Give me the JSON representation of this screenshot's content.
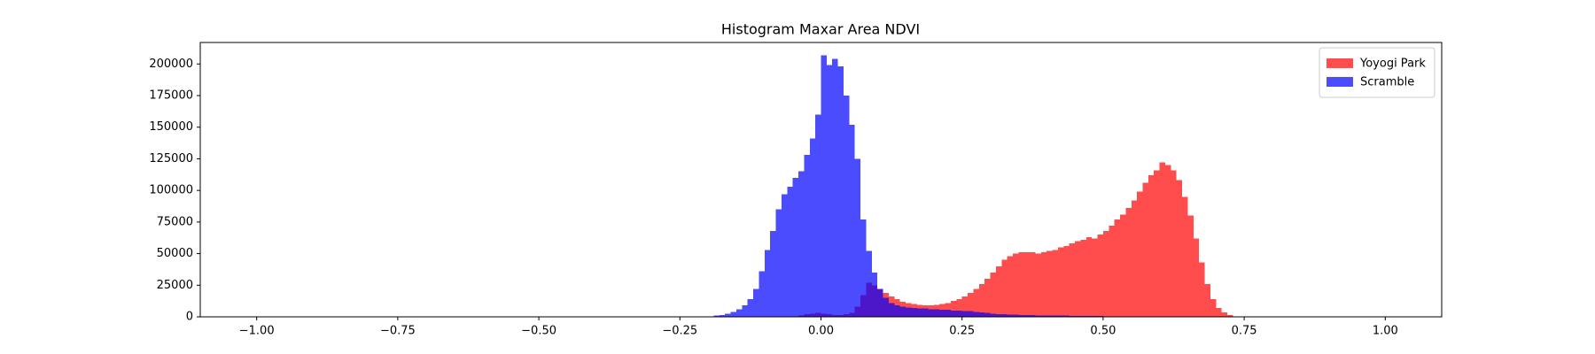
{
  "chart_data": {
    "type": "histogram",
    "title": "Histogram Maxar Area NDVI",
    "bins": [
      -1,
      -0.99,
      -0.98,
      -0.97,
      -0.96,
      -0.95,
      -0.94,
      -0.93,
      -0.92,
      -0.91,
      -0.9,
      -0.89,
      -0.88,
      -0.87,
      -0.86,
      -0.85,
      -0.84,
      -0.83,
      -0.82,
      -0.81,
      -0.8,
      -0.79,
      -0.78,
      -0.77,
      -0.76,
      -0.75,
      -0.74,
      -0.73,
      -0.72,
      -0.71,
      -0.7,
      -0.69,
      -0.68,
      -0.67,
      -0.66,
      -0.65,
      -0.64,
      -0.63,
      -0.62,
      -0.61,
      -0.6,
      -0.59,
      -0.58,
      -0.57,
      -0.56,
      -0.55,
      -0.54,
      -0.53,
      -0.52,
      -0.51,
      -0.5,
      -0.49,
      -0.48,
      -0.47,
      -0.46,
      -0.45,
      -0.44,
      -0.43,
      -0.42,
      -0.41,
      -0.4,
      -0.39,
      -0.38,
      -0.37,
      -0.36,
      -0.35,
      -0.34,
      -0.33,
      -0.32,
      -0.31,
      -0.3,
      -0.29,
      -0.28,
      -0.27,
      -0.26,
      -0.25,
      -0.24,
      -0.23,
      -0.22,
      -0.21,
      -0.2,
      -0.19,
      -0.18,
      -0.17,
      -0.16,
      -0.15,
      -0.14,
      -0.13,
      -0.12,
      -0.11,
      -0.1,
      -0.09,
      -0.08,
      -0.07,
      -0.06,
      -0.05,
      -0.04,
      -0.03,
      -0.02,
      -0.01,
      0,
      0.01,
      0.02,
      0.03,
      0.04,
      0.05,
      0.06,
      0.07,
      0.08,
      0.09,
      0.1,
      0.11,
      0.12,
      0.13,
      0.14,
      0.15,
      0.16,
      0.17,
      0.18,
      0.19,
      0.2,
      0.21,
      0.22,
      0.23,
      0.24,
      0.25,
      0.26,
      0.27,
      0.28,
      0.29,
      0.3,
      0.31,
      0.32,
      0.33,
      0.34,
      0.35,
      0.36,
      0.37,
      0.38,
      0.39,
      0.4,
      0.41,
      0.42,
      0.43,
      0.44,
      0.45,
      0.46,
      0.47,
      0.48,
      0.49,
      0.5,
      0.51,
      0.52,
      0.53,
      0.54,
      0.55,
      0.56,
      0.57,
      0.58,
      0.59,
      0.6,
      0.61,
      0.62,
      0.63,
      0.64,
      0.65,
      0.66,
      0.67,
      0.68,
      0.69,
      0.7,
      0.71,
      0.72,
      0.73,
      0.74,
      0.75,
      0.76,
      0.77,
      0.78,
      0.79,
      0.8,
      0.81,
      0.82,
      0.83,
      0.84,
      0.85,
      0.86,
      0.87,
      0.88,
      0.89,
      0.9,
      0.91,
      0.92,
      0.93,
      0.94,
      0.95,
      0.96,
      0.97,
      0.98,
      0.99,
      1
    ],
    "series": [
      {
        "name": "Yoyogi Park",
        "color": "#ff0000",
        "alpha": 0.7,
        "values": [
          0,
          0,
          0,
          0,
          0,
          0,
          0,
          0,
          0,
          0,
          0,
          0,
          0,
          0,
          0,
          0,
          0,
          0,
          0,
          0,
          0,
          0,
          0,
          0,
          0,
          0,
          0,
          0,
          0,
          0,
          0,
          0,
          0,
          0,
          0,
          0,
          0,
          0,
          0,
          0,
          0,
          0,
          0,
          0,
          0,
          0,
          0,
          0,
          0,
          0,
          0,
          0,
          0,
          0,
          0,
          0,
          0,
          0,
          0,
          0,
          0,
          0,
          0,
          0,
          0,
          0,
          0,
          0,
          0,
          0,
          0,
          0,
          0,
          0,
          0,
          0,
          0,
          0,
          0,
          0,
          0,
          0,
          0,
          0,
          0,
          0,
          0,
          0,
          0,
          0,
          0,
          0,
          0,
          0,
          0,
          500,
          1000,
          2000,
          2500,
          3000,
          2500,
          2000,
          1500,
          1500,
          2000,
          3000,
          8000,
          17000,
          27000,
          25000,
          22000,
          19000,
          16000,
          14000,
          12000,
          11000,
          10000,
          9500,
          9000,
          9000,
          9500,
          10000,
          11000,
          12500,
          14000,
          16000,
          19000,
          22000,
          26000,
          30000,
          35000,
          40000,
          45000,
          48000,
          50000,
          51000,
          51000,
          51000,
          50000,
          51000,
          52000,
          53000,
          55000,
          56000,
          58000,
          60000,
          61000,
          63000,
          62000,
          65000,
          68000,
          72000,
          77000,
          81000,
          86000,
          92000,
          99000,
          106000,
          112000,
          116000,
          122000,
          120000,
          116000,
          108000,
          95000,
          80000,
          62000,
          43000,
          26000,
          14000,
          7000,
          3500,
          1500,
          500,
          200,
          0,
          0,
          0,
          0,
          0,
          0,
          0,
          0,
          0,
          0,
          0,
          0,
          0,
          0,
          0,
          0,
          0,
          0,
          0,
          0,
          0,
          0,
          0,
          0,
          0
        ]
      },
      {
        "name": "Scramble",
        "color": "#0000ff",
        "alpha": 0.7,
        "values": [
          0,
          0,
          0,
          0,
          0,
          0,
          0,
          0,
          0,
          0,
          0,
          0,
          0,
          0,
          0,
          0,
          0,
          0,
          0,
          0,
          0,
          0,
          0,
          0,
          0,
          0,
          0,
          0,
          0,
          0,
          0,
          0,
          0,
          0,
          0,
          0,
          0,
          0,
          0,
          0,
          0,
          0,
          0,
          0,
          0,
          0,
          0,
          0,
          0,
          0,
          0,
          0,
          0,
          0,
          0,
          0,
          0,
          0,
          0,
          0,
          0,
          0,
          0,
          0,
          0,
          0,
          0,
          0,
          0,
          0,
          0,
          0,
          0,
          0,
          0,
          0,
          0,
          0,
          0,
          0,
          500,
          1000,
          1500,
          2500,
          4000,
          6000,
          9000,
          14000,
          22000,
          36000,
          53000,
          68000,
          85000,
          97000,
          103000,
          110000,
          115000,
          128000,
          141000,
          160000,
          207000,
          199000,
          204000,
          198000,
          175000,
          152000,
          125000,
          77000,
          52000,
          35000,
          22000,
          15000,
          11000,
          9000,
          8000,
          7500,
          7000,
          6500,
          6500,
          6000,
          6000,
          5500,
          5500,
          5000,
          5000,
          4500,
          4500,
          4000,
          3500,
          3000,
          2500,
          2000,
          2000,
          1800,
          1600,
          1500,
          1400,
          1300,
          1200,
          1100,
          1000,
          1000,
          900,
          900,
          800,
          800,
          700,
          700,
          600,
          600,
          500,
          500,
          500,
          400,
          400,
          300,
          300,
          200,
          200,
          200,
          100,
          100,
          100,
          0,
          0,
          0,
          0,
          0,
          0,
          0,
          0,
          0,
          0,
          0,
          0,
          0,
          0,
          0,
          0,
          0,
          0,
          0,
          0,
          0,
          0,
          0,
          0,
          0,
          0,
          0,
          0,
          0,
          0,
          0,
          0,
          0,
          0,
          0,
          0,
          0
        ]
      }
    ],
    "xlim": [
      -1.1,
      1.1
    ],
    "xticks": [
      {
        "value": -1,
        "label": "−1.00"
      },
      {
        "value": -0.75,
        "label": "−0.75"
      },
      {
        "value": -0.5,
        "label": "−0.50"
      },
      {
        "value": -0.25,
        "label": "−0.25"
      },
      {
        "value": 0,
        "label": "0.00"
      },
      {
        "value": 0.25,
        "label": "0.25"
      },
      {
        "value": 0.5,
        "label": "0.50"
      },
      {
        "value": 0.75,
        "label": "0.75"
      },
      {
        "value": 1,
        "label": "1.00"
      }
    ],
    "ylim": [
      0,
      217000
    ],
    "yticks": [
      0,
      25000,
      50000,
      75000,
      100000,
      125000,
      150000,
      175000,
      200000
    ],
    "legend": "upper right"
  }
}
